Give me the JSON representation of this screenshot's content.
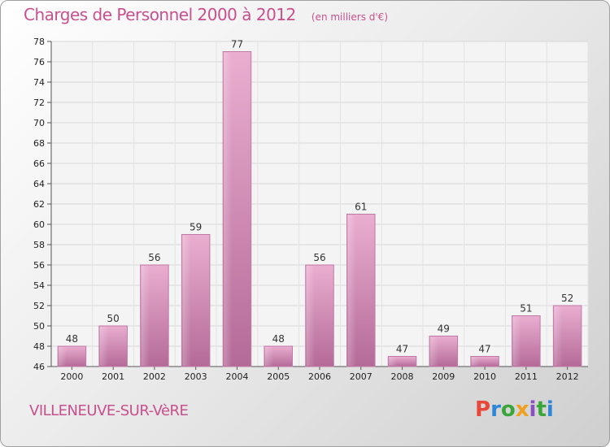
{
  "header": {
    "title": "Charges de Personnel 2000 à 2012",
    "subtitle": "(en milliers d'€)"
  },
  "footer": {
    "city": "VILLENEUVE-SUR-VèRE",
    "logo": "Proxiti"
  },
  "colors": {
    "title": "#c8508c",
    "bar_light": "#e8a6cc",
    "bar_dark": "#b06090"
  },
  "chart_data": {
    "type": "bar",
    "title": "Charges de Personnel 2000 à 2012",
    "subtitle": "(en milliers d'€)",
    "categories": [
      "2000",
      "2001",
      "2002",
      "2003",
      "2004",
      "2005",
      "2006",
      "2007",
      "2008",
      "2009",
      "2010",
      "2011",
      "2012"
    ],
    "values": [
      48,
      50,
      56,
      59,
      77,
      48,
      56,
      61,
      47,
      49,
      47,
      51,
      52
    ],
    "ylim": [
      46,
      78
    ],
    "yticks": [
      46,
      48,
      50,
      52,
      54,
      56,
      58,
      60,
      62,
      64,
      66,
      68,
      70,
      72,
      74,
      76,
      78
    ],
    "grid": true,
    "legend": "none"
  }
}
